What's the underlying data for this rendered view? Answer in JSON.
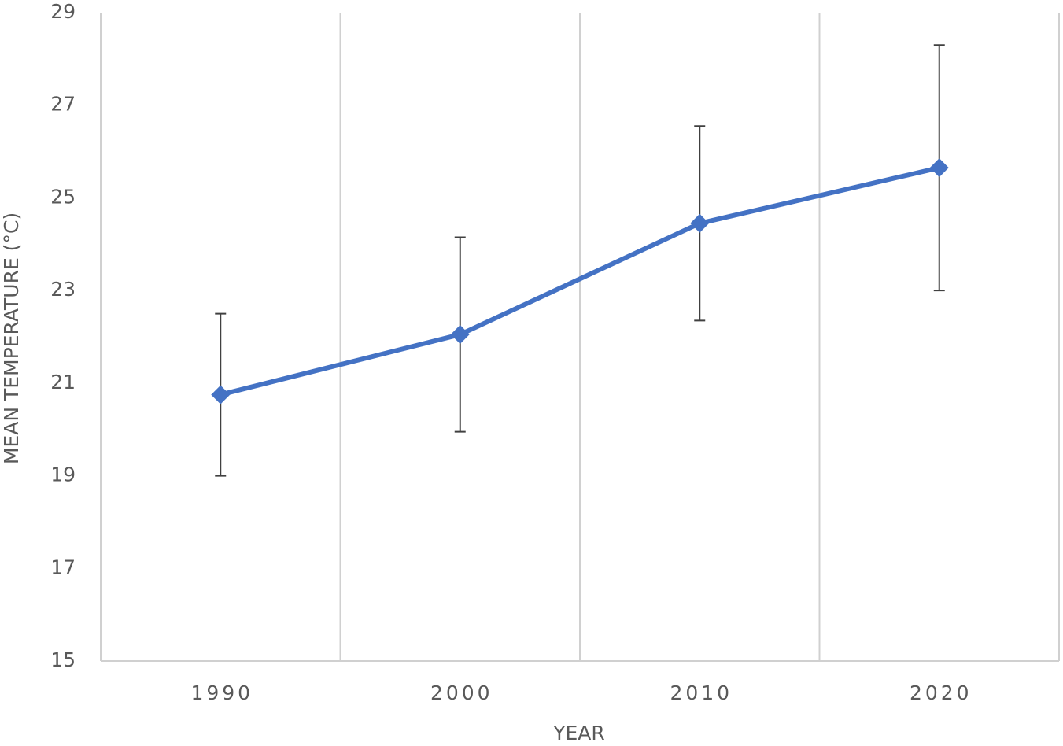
{
  "chart_data": {
    "type": "line",
    "categories": [
      "1990",
      "2000",
      "2010",
      "2020"
    ],
    "values": [
      20.75,
      22.05,
      24.45,
      25.65
    ],
    "errors": [
      1.75,
      2.1,
      2.1,
      2.65
    ],
    "color": "#4472c4",
    "error_color": "#404040",
    "x_label": "YEAR",
    "y_label": "MEAN TEMPERATURE (°C)",
    "ylim": [
      15,
      29
    ],
    "yticks": [
      15,
      17,
      19,
      21,
      23,
      25,
      27,
      29
    ]
  }
}
